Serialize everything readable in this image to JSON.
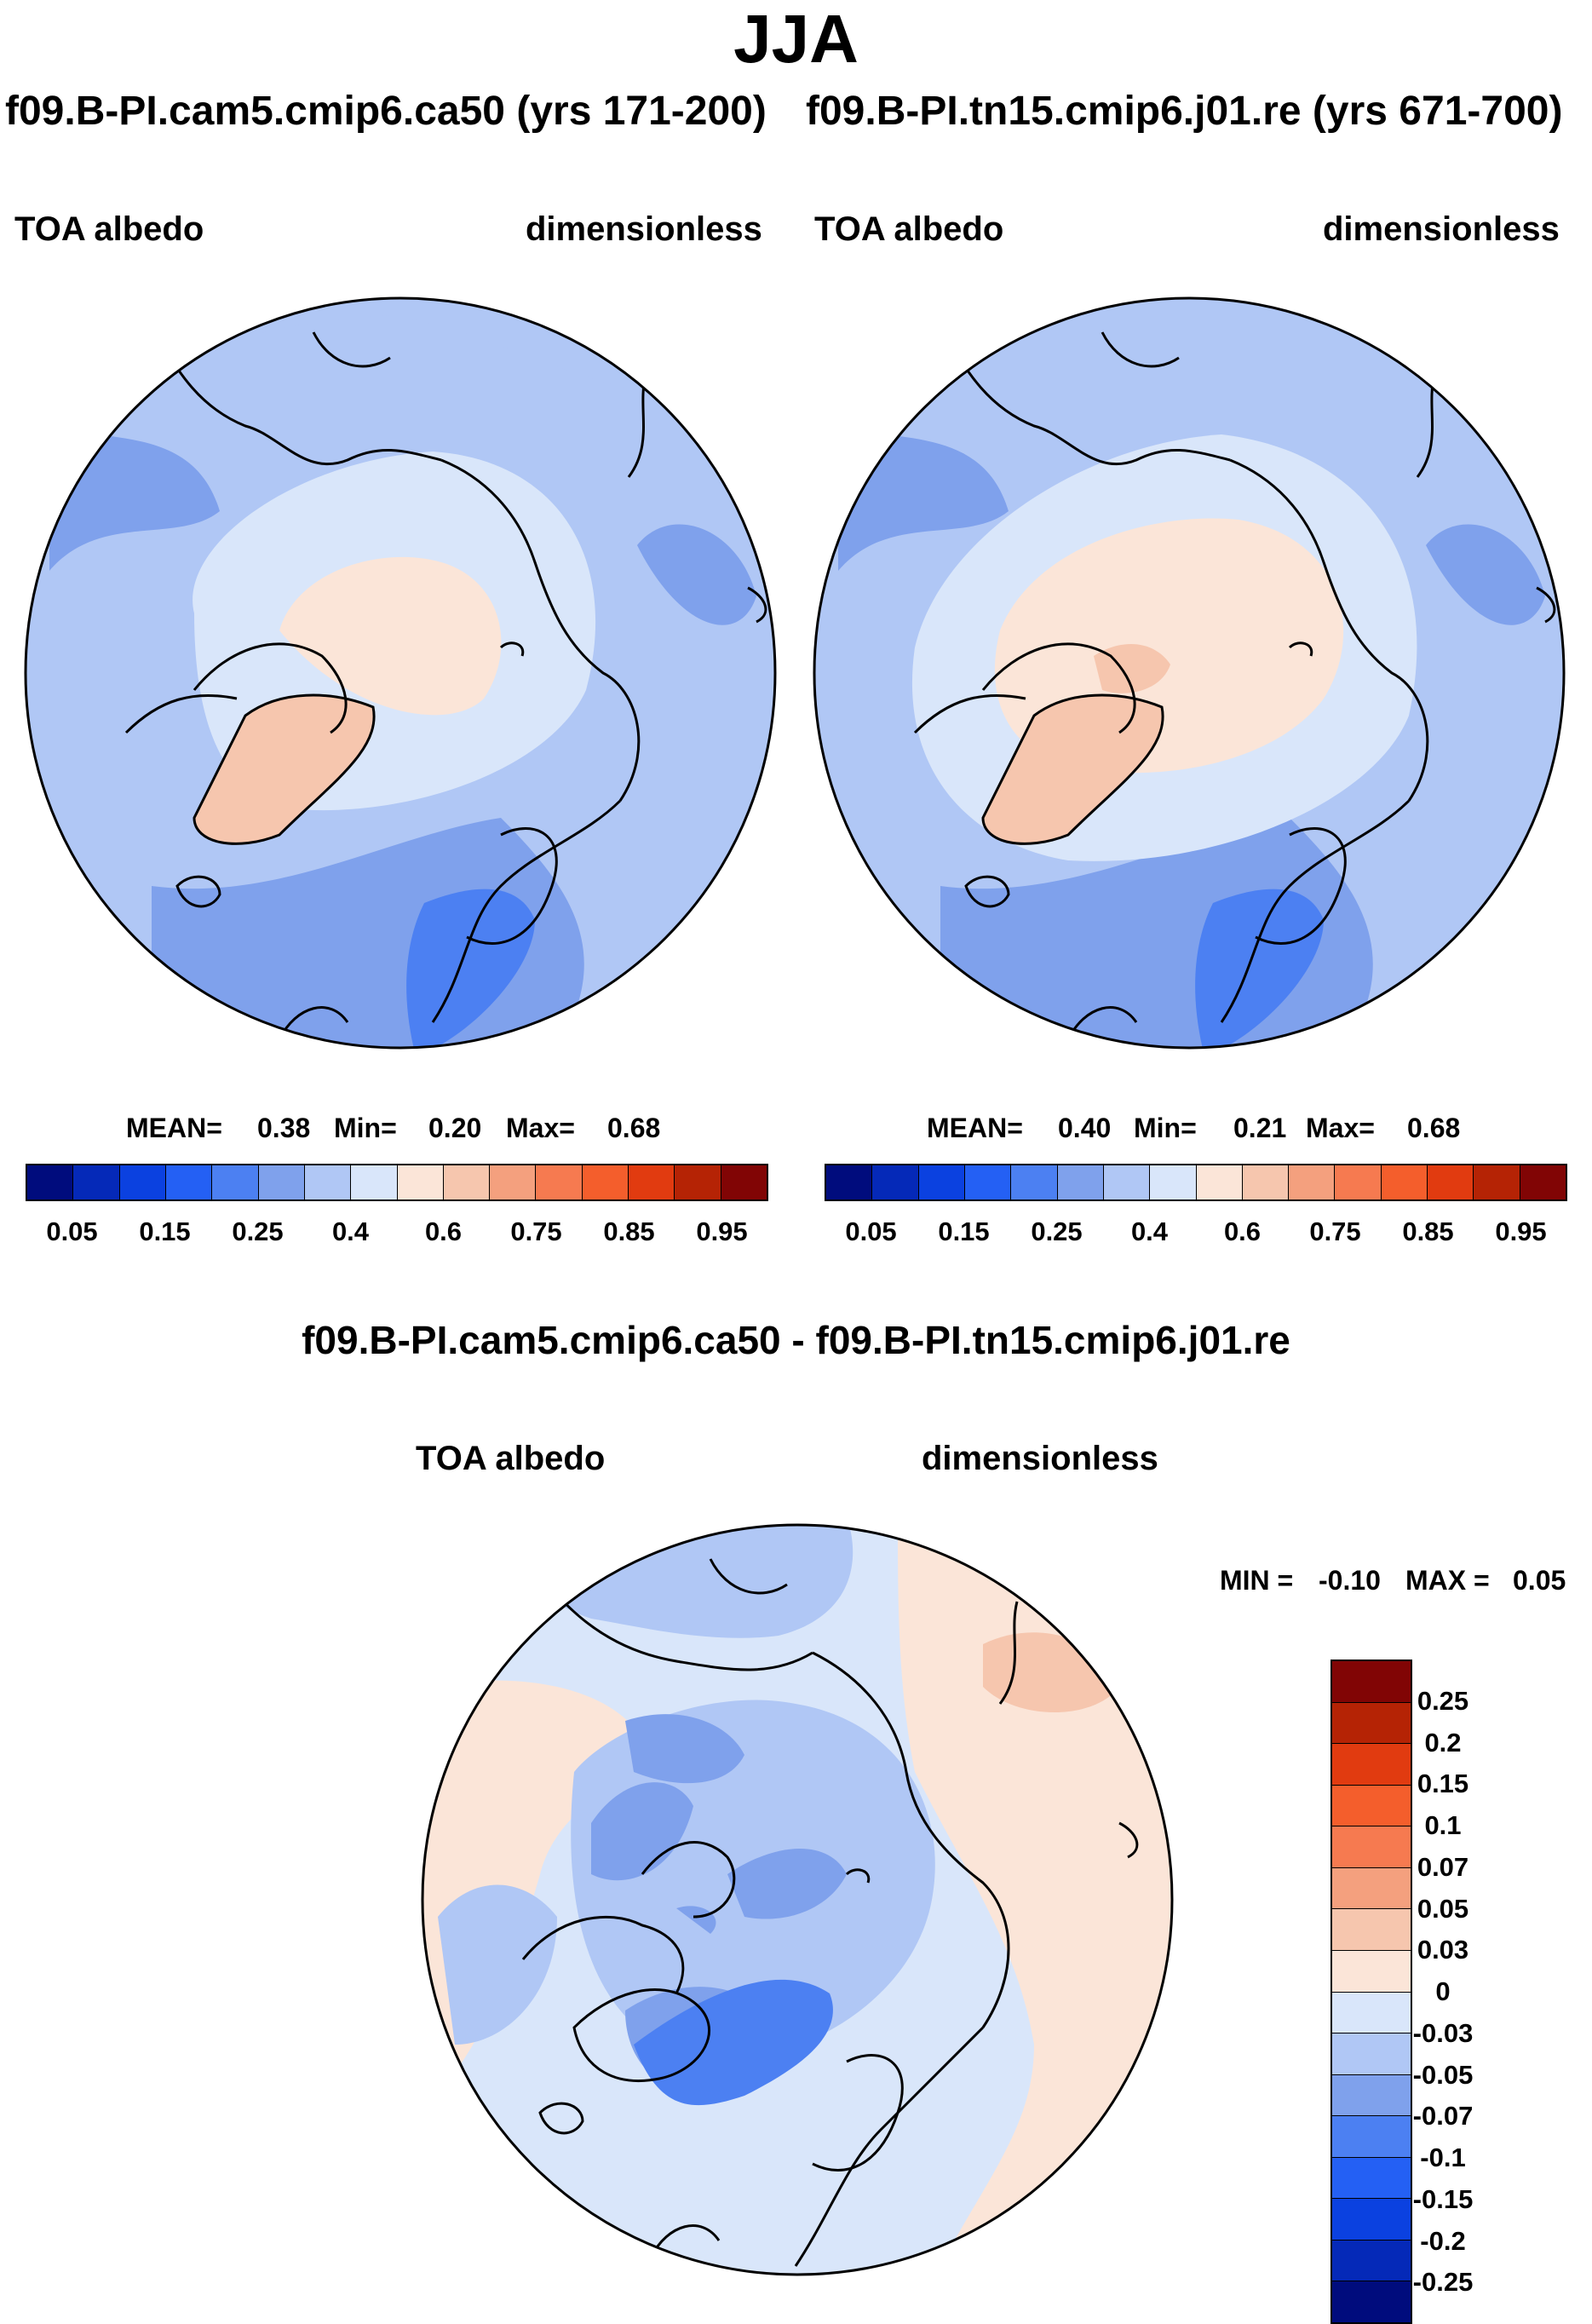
{
  "season": "JJA",
  "cases": {
    "case1": "f09.B-PI.cam5.cmip6.ca50 (yrs 171-200)",
    "case2": "f09.B-PI.tn15.cmip6.j01.re (yrs 671-700)",
    "diff": "f09.B-PI.cam5.cmip6.ca50 - f09.B-PI.tn15.cmip6.j01.re"
  },
  "variable": {
    "name": "TOA albedo",
    "units": "dimensionless"
  },
  "panel1": {
    "mean_label": "MEAN=",
    "mean": "0.38",
    "min_label": "Min=",
    "min": "0.20",
    "max_label": "Max=",
    "max": "0.68"
  },
  "panel2": {
    "mean_label": "MEAN=",
    "mean": "0.40",
    "min_label": "Min=",
    "min": "0.21",
    "max_label": "Max=",
    "max": "0.68"
  },
  "diff_panel": {
    "min_label": "MIN =",
    "min": "-0.10",
    "max_label": "MAX =",
    "max": "0.05"
  },
  "colorbar_abs": {
    "ticks": [
      "0.05",
      "0.15",
      "0.25",
      "0.4",
      "0.6",
      "0.75",
      "0.85",
      "0.95"
    ],
    "colors": [
      "#000c7d",
      "#0529b8",
      "#0b41e0",
      "#2460f4",
      "#4c80f2",
      "#7fa1ec",
      "#b0c7f5",
      "#d9e6fa",
      "#fbe5d8",
      "#f6c6ae",
      "#f4a07e",
      "#f67a50",
      "#f45e2c",
      "#e13b10",
      "#b52305",
      "#810505"
    ]
  },
  "colorbar_diff": {
    "ticks": [
      "0.25",
      "0.2",
      "0.15",
      "0.1",
      "0.07",
      "0.05",
      "0.03",
      "0",
      "-0.03",
      "-0.05",
      "-0.07",
      "-0.1",
      "-0.15",
      "-0.2",
      "-0.25"
    ],
    "colors": [
      "#810505",
      "#b52305",
      "#e13b10",
      "#f45e2c",
      "#f67a50",
      "#f4a07e",
      "#f6c6ae",
      "#fbe5d8",
      "#d9e6fa",
      "#b0c7f5",
      "#7fa1ec",
      "#4c80f2",
      "#2460f4",
      "#0b41e0",
      "#0529b8",
      "#000c7d"
    ]
  },
  "chart_data": [
    {
      "type": "heatmap",
      "projection": "north polar stereographic",
      "title": "f09.B-PI.cam5.cmip6.ca50 (yrs 171-200)",
      "field": "TOA albedo",
      "units": "dimensionless",
      "season": "JJA",
      "mean": 0.38,
      "min": 0.2,
      "max": 0.68,
      "contour_levels": [
        0.05,
        0.1,
        0.15,
        0.2,
        0.25,
        0.3,
        0.35,
        0.4,
        0.5,
        0.6,
        0.7,
        0.75,
        0.8,
        0.85,
        0.9,
        0.95
      ]
    },
    {
      "type": "heatmap",
      "projection": "north polar stereographic",
      "title": "f09.B-PI.tn15.cmip6.j01.re (yrs 671-700)",
      "field": "TOA albedo",
      "units": "dimensionless",
      "season": "JJA",
      "mean": 0.4,
      "min": 0.21,
      "max": 0.68,
      "contour_levels": [
        0.05,
        0.1,
        0.15,
        0.2,
        0.25,
        0.3,
        0.35,
        0.4,
        0.5,
        0.6,
        0.7,
        0.75,
        0.8,
        0.85,
        0.9,
        0.95
      ]
    },
    {
      "type": "heatmap",
      "projection": "north polar stereographic",
      "title": "f09.B-PI.cam5.cmip6.ca50 - f09.B-PI.tn15.cmip6.j01.re",
      "field": "TOA albedo",
      "units": "dimensionless",
      "season": "JJA",
      "min": -0.1,
      "max": 0.05,
      "contour_levels": [
        -0.25,
        -0.2,
        -0.15,
        -0.1,
        -0.07,
        -0.05,
        -0.03,
        0,
        0.03,
        0.05,
        0.07,
        0.1,
        0.15,
        0.2,
        0.25
      ]
    }
  ]
}
